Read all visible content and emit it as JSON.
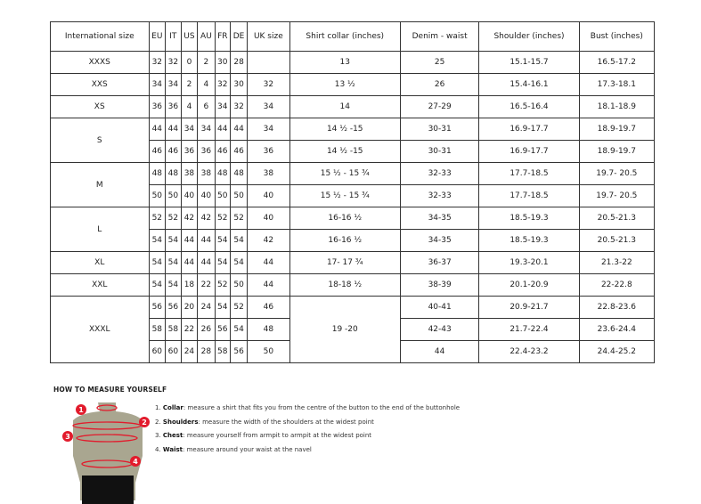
{
  "headers": [
    "International size",
    "EU",
    "IT",
    "US",
    "AU",
    "FR",
    "DE",
    "UK size",
    "Shirt collar (inches)",
    "Denim - waist",
    "Shoulder (inches)",
    "Bust (inches)"
  ],
  "groups": [
    {
      "size": "XXXS",
      "rows": [
        [
          "32",
          "32",
          "0",
          "2",
          "30",
          "28",
          "",
          "13",
          "25",
          "15.1-15.7",
          "16.5-17.2"
        ]
      ]
    },
    {
      "size": "XXS",
      "rows": [
        [
          "34",
          "34",
          "2",
          "4",
          "32",
          "30",
          "32",
          "13 ½",
          "26",
          "15.4-16.1",
          "17.3-18.1"
        ]
      ]
    },
    {
      "size": "XS",
      "rows": [
        [
          "36",
          "36",
          "4",
          "6",
          "34",
          "32",
          "34",
          "14",
          "27-29",
          "16.5-16.4",
          "18.1-18.9"
        ]
      ]
    },
    {
      "size": "S",
      "rows": [
        [
          "44",
          "44",
          "34",
          "34",
          "44",
          "44",
          "34",
          "14 ½ -15",
          "30-31",
          "16.9-17.7",
          "18.9-19.7"
        ],
        [
          "46",
          "46",
          "36",
          "36",
          "46",
          "46",
          "36",
          "14 ½ -15",
          "30-31",
          "16.9-17.7",
          "18.9-19.7"
        ]
      ]
    },
    {
      "size": "M",
      "rows": [
        [
          "48",
          "48",
          "38",
          "38",
          "48",
          "48",
          "38",
          "15 ½ - 15 ¾",
          "32-33",
          "17.7-18.5",
          "19.7- 20.5"
        ],
        [
          "50",
          "50",
          "40",
          "40",
          "50",
          "50",
          "40",
          "15 ½ - 15 ¾",
          "32-33",
          "17.7-18.5",
          "19.7- 20.5"
        ]
      ]
    },
    {
      "size": "L",
      "rows": [
        [
          "52",
          "52",
          "42",
          "42",
          "52",
          "52",
          "40",
          "16-16 ½",
          "34-35",
          "18.5-19.3",
          "20.5-21.3"
        ],
        [
          "54",
          "54",
          "44",
          "44",
          "54",
          "54",
          "42",
          "16-16 ½",
          "34-35",
          "18.5-19.3",
          "20.5-21.3"
        ]
      ]
    },
    {
      "size": "XL",
      "rows": [
        [
          "54",
          "54",
          "44",
          "44",
          "54",
          "54",
          "44",
          "17- 17 ¾",
          "36-37",
          "19.3-20.1",
          "21.3-22"
        ]
      ]
    },
    {
      "size": "XXL",
      "rows": [
        [
          "54",
          "54",
          "18",
          "22",
          "52",
          "50",
          "44",
          "18-18 ½",
          "38-39",
          "20.1-20.9",
          "22-22.8"
        ]
      ]
    },
    {
      "size": "XXXL",
      "collar": "19 -20",
      "rows": [
        [
          "56",
          "56",
          "20",
          "24",
          "54",
          "52",
          "46",
          null,
          "40-41",
          "20.9-21.7",
          "22.8-23.6"
        ],
        [
          "58",
          "58",
          "22",
          "26",
          "56",
          "54",
          "48",
          null,
          "42-43",
          "21.7-22.4",
          "23.6-24.4"
        ],
        [
          "60",
          "60",
          "24",
          "28",
          "58",
          "56",
          "50",
          null,
          "44",
          "22.4-23.2",
          "24.4-25.2"
        ]
      ]
    }
  ],
  "howto": {
    "title": "HOW TO MEASURE YOURSELF",
    "steps": [
      {
        "n": "1.",
        "term": "Collar",
        "text": ": measure a shirt that fits you from the centre of the button to the end of the buttonhole"
      },
      {
        "n": "2.",
        "term": "Shoulders",
        "text": ": measure the width of the shoulders at the widest point"
      },
      {
        "n": "3.",
        "term": "Chest",
        "text": ": measure yourself from armpit to armpit at the widest point"
      },
      {
        "n": "4.",
        "term": "Waist",
        "text": ": measure around your waist at the navel"
      }
    ],
    "markers": [
      "1",
      "2",
      "3",
      "4"
    ],
    "marker_color": "#e21b2c"
  }
}
